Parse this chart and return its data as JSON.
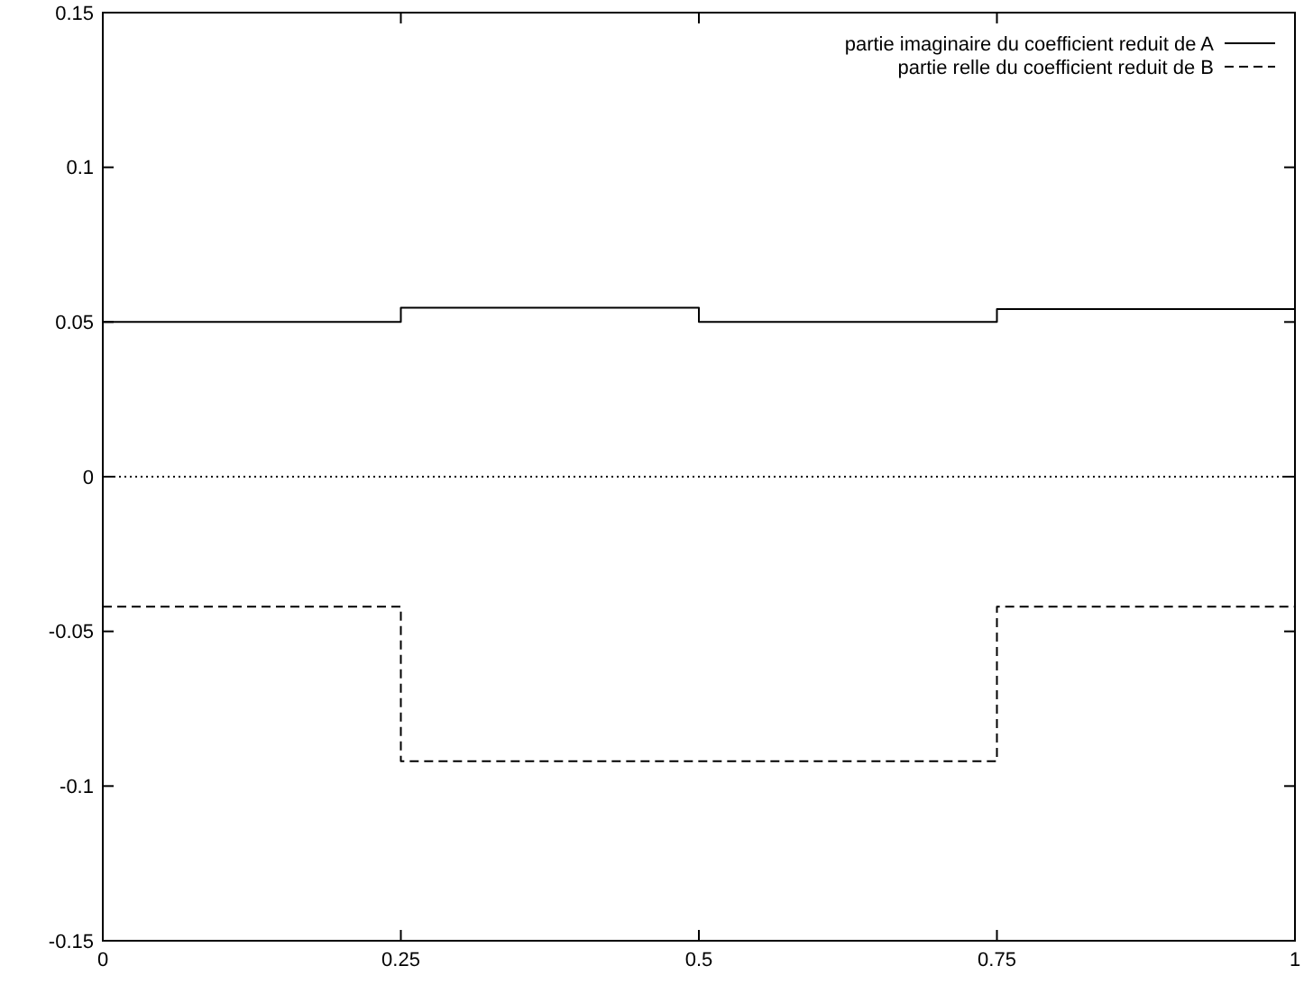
{
  "chart_data": {
    "type": "step",
    "x": [
      0,
      0.25,
      0.5,
      0.75,
      1
    ],
    "series": [
      {
        "name": "partie imaginaire du coefficient reduit de A",
        "color": "#000000",
        "line_style": "solid",
        "values": [
          0.05,
          0.0546,
          0.05,
          0.0542,
          0.0542
        ]
      },
      {
        "name": "partie relle du coefficient reduit de B",
        "color": "#000000",
        "line_style": "dashed",
        "values": [
          -0.042,
          -0.092,
          -0.092,
          -0.042,
          -0.042
        ]
      }
    ],
    "xlim": [
      0,
      1
    ],
    "xticks": [
      0,
      0.25,
      0.5,
      0.75,
      1
    ],
    "ylim": [
      -0.15,
      0.15
    ],
    "yticks": [
      -0.15,
      -0.1,
      -0.05,
      0,
      0.05,
      0.1,
      0.15
    ],
    "ref_lines": [
      {
        "axis": "y",
        "value": 0,
        "line_style": "dotted",
        "color": "#000000"
      }
    ],
    "legend": "top right",
    "grid": false
  }
}
